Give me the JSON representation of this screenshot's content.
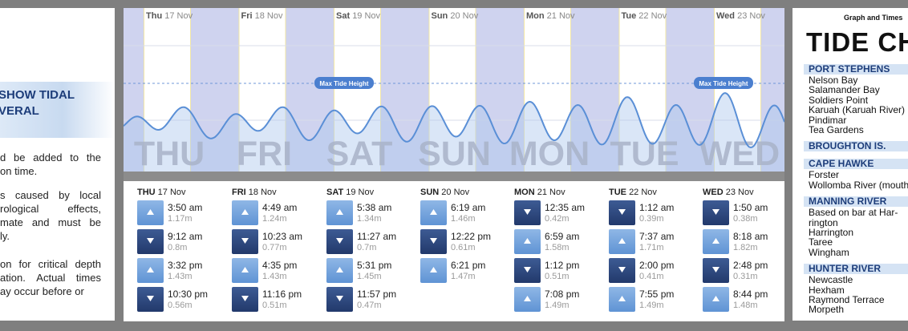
{
  "left_panel": {
    "heading_line1": "SHOW TIDAL",
    "heading_line2": "VERAL",
    "para1": [
      [
        "d",
        "be",
        "added",
        "to",
        "the"
      ],
      [
        "on time."
      ]
    ],
    "para2": [
      [
        "s",
        "caused",
        "by",
        "local"
      ],
      [
        "rological",
        "effects,"
      ],
      [
        "mate",
        "and",
        "must",
        "be"
      ],
      [
        "ly."
      ]
    ],
    "para3": [
      [
        "on",
        "for",
        "critical",
        "depth"
      ],
      [
        "ation.",
        "Actual",
        "times"
      ],
      [
        "ay",
        "occur",
        "before",
        "or"
      ]
    ]
  },
  "chart": {
    "max_tide_label": "Max Tide Height",
    "days": [
      {
        "abbr": "THU",
        "head_b": "Thu",
        "head": "17 Nov"
      },
      {
        "abbr": "FRI",
        "head_b": "Fri",
        "head": "18 Nov"
      },
      {
        "abbr": "SAT",
        "head_b": "Sat",
        "head": "19 Nov"
      },
      {
        "abbr": "SUN",
        "head_b": "Sun",
        "head": "20 Nov"
      },
      {
        "abbr": "MON",
        "head_b": "Mon",
        "head": "21 Nov"
      },
      {
        "abbr": "TUE",
        "head_b": "Tue",
        "head": "22 Nov"
      },
      {
        "abbr": "WED",
        "head_b": "Wed",
        "head": "23 Nov"
      }
    ],
    "colors": {
      "night": "#cfd3ef",
      "day": "#ffffff",
      "curve": "#5a8fd6",
      "fill": "#aec7ee",
      "watermark": "#a9b3c9"
    }
  },
  "tides": [
    {
      "day": "THU",
      "date": "17 Nov",
      "entries": [
        {
          "type": "high",
          "time": "3:50 am",
          "height": "1.17m"
        },
        {
          "type": "low",
          "time": "9:12 am",
          "height": "0.8m"
        },
        {
          "type": "high",
          "time": "3:32 pm",
          "height": "1.43m"
        },
        {
          "type": "low",
          "time": "10:30 pm",
          "height": "0.56m"
        }
      ]
    },
    {
      "day": "FRI",
      "date": "18 Nov",
      "entries": [
        {
          "type": "high",
          "time": "4:49 am",
          "height": "1.24m"
        },
        {
          "type": "low",
          "time": "10:23 am",
          "height": "0.77m"
        },
        {
          "type": "high",
          "time": "4:35 pm",
          "height": "1.43m"
        },
        {
          "type": "low",
          "time": "11:16 pm",
          "height": "0.51m"
        }
      ]
    },
    {
      "day": "SAT",
      "date": "19 Nov",
      "entries": [
        {
          "type": "high",
          "time": "5:38 am",
          "height": "1.34m"
        },
        {
          "type": "low",
          "time": "11:27 am",
          "height": "0.7m"
        },
        {
          "type": "high",
          "time": "5:31 pm",
          "height": "1.45m"
        },
        {
          "type": "low",
          "time": "11:57 pm",
          "height": "0.47m"
        }
      ]
    },
    {
      "day": "SUN",
      "date": "20 Nov",
      "entries": [
        {
          "type": "high",
          "time": "6:19 am",
          "height": "1.46m"
        },
        {
          "type": "low",
          "time": "12:22 pm",
          "height": "0.61m"
        },
        {
          "type": "high",
          "time": "6:21 pm",
          "height": "1.47m"
        }
      ]
    },
    {
      "day": "MON",
      "date": "21 Nov",
      "entries": [
        {
          "type": "low",
          "time": "12:35 am",
          "height": "0.42m"
        },
        {
          "type": "high",
          "time": "6:59 am",
          "height": "1.58m"
        },
        {
          "type": "low",
          "time": "1:12 pm",
          "height": "0.51m"
        },
        {
          "type": "high",
          "time": "7:08 pm",
          "height": "1.49m"
        }
      ]
    },
    {
      "day": "TUE",
      "date": "22 Nov",
      "entries": [
        {
          "type": "low",
          "time": "1:12 am",
          "height": "0.39m"
        },
        {
          "type": "high",
          "time": "7:37 am",
          "height": "1.71m"
        },
        {
          "type": "low",
          "time": "2:00 pm",
          "height": "0.41m"
        },
        {
          "type": "high",
          "time": "7:55 pm",
          "height": "1.49m"
        }
      ]
    },
    {
      "day": "WED",
      "date": "23 Nov",
      "entries": [
        {
          "type": "low",
          "time": "1:50 am",
          "height": "0.38m"
        },
        {
          "type": "high",
          "time": "8:18 am",
          "height": "1.82m"
        },
        {
          "type": "low",
          "time": "2:48 pm",
          "height": "0.31m"
        },
        {
          "type": "high",
          "time": "8:44 pm",
          "height": "1.48m"
        }
      ]
    }
  ],
  "right_panel": {
    "subtitle": "Graph and Times",
    "title": "TIDE CH",
    "regions": [
      {
        "name": "PORT STEPHENS",
        "places": [
          "Nelson Bay",
          "Salamander Bay",
          "Soldiers Point",
          "Karuah (Karuah River)",
          "Pindimar",
          "Tea Gardens"
        ]
      },
      {
        "name": "BROUGHTON IS.",
        "places": []
      },
      {
        "name": "CAPE HAWKE",
        "places": [
          "Forster",
          "Wollomba River (mouth)"
        ]
      },
      {
        "name": "MANNING RIVER",
        "places": [
          "Based on bar at Har-",
          "rington",
          "Harrington",
          "Taree",
          "Wingham"
        ]
      },
      {
        "name": "HUNTER RIVER",
        "places": [
          "Newcastle",
          "Hexham",
          "Raymond Terrace",
          "Morpeth"
        ]
      }
    ]
  }
}
